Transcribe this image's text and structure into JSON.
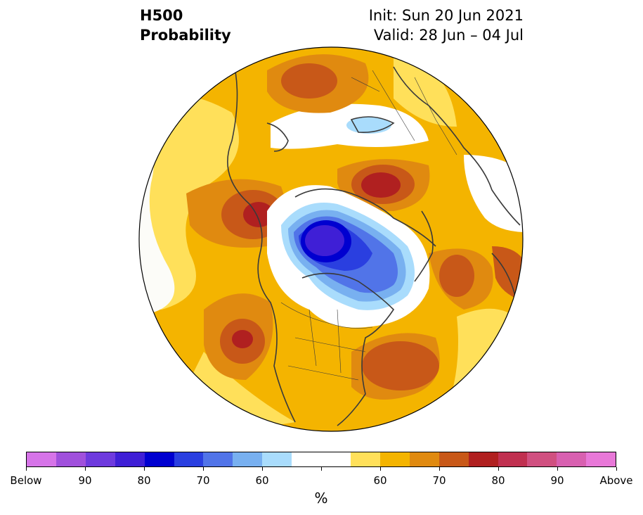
{
  "header": {
    "title_line1": "H500",
    "title_line2": "Probability",
    "init_text": "Init: Sun 20 Jun 2021",
    "valid_text": "Valid: 28 Jun – 04 Jul"
  },
  "colorbar": {
    "colors": [
      "#d674e8",
      "#a050dc",
      "#6e3ade",
      "#3f1fd6",
      "#0000d0",
      "#2a3fe0",
      "#5174e8",
      "#78b0f0",
      "#a9dcfc",
      "#ffffff",
      "#ffffff",
      "#ffe05a",
      "#f4b400",
      "#e08a10",
      "#c85818",
      "#b02020",
      "#c03050",
      "#d05080",
      "#d860b0",
      "#e878d8"
    ],
    "tick_labels": [
      "Below",
      "90",
      "80",
      "70",
      "60",
      "60",
      "70",
      "80",
      "90",
      "Above"
    ],
    "unit": "%"
  },
  "palette": {
    "ocean_bg": "#fcfcf8",
    "land_border": "#3a3a3a"
  }
}
